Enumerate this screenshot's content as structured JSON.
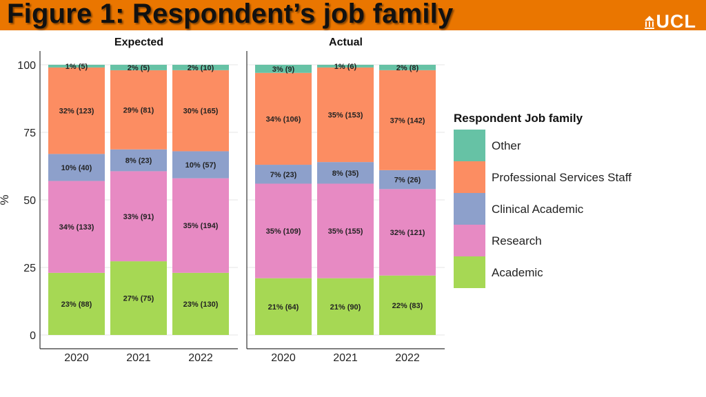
{
  "slide": {
    "title": "Figure 1: Respondent’s job family",
    "logo_text": "UCL",
    "logo_icon": "ucl-portico-icon",
    "header_color": "#ea7600"
  },
  "chart_data": {
    "type": "bar",
    "stacked": true,
    "facets": [
      "Expected",
      "Actual"
    ],
    "categories": [
      "2020",
      "2021",
      "2022"
    ],
    "ylabel": "%",
    "xlabel": "",
    "ylim": [
      0,
      100
    ],
    "yticks": [
      0,
      25,
      50,
      75,
      100
    ],
    "legend_title": "Respondent Job family",
    "legend_position": "right",
    "grid": true,
    "series": [
      {
        "name": "Academic",
        "color": "#a6d854",
        "facets": {
          "Expected": {
            "values": [
              23,
              27,
              23
            ],
            "counts": [
              88,
              75,
              130
            ],
            "labels": [
              "23% (88)",
              "27% (75)",
              "23% (130)"
            ]
          },
          "Actual": {
            "values": [
              21,
              21,
              22
            ],
            "counts": [
              64,
              90,
              83
            ],
            "labels": [
              "21% (64)",
              "21% (90)",
              "22% (83)"
            ]
          }
        }
      },
      {
        "name": "Research",
        "color": "#e78ac3",
        "facets": {
          "Expected": {
            "values": [
              34,
              33,
              35
            ],
            "counts": [
              133,
              91,
              194
            ],
            "labels": [
              "34% (133)",
              "33% (91)",
              "35% (194)"
            ]
          },
          "Actual": {
            "values": [
              35,
              35,
              32
            ],
            "counts": [
              109,
              155,
              121
            ],
            "labels": [
              "35% (109)",
              "35% (155)",
              "32% (121)"
            ]
          }
        }
      },
      {
        "name": "Clinical Academic",
        "color": "#8da0cb",
        "facets": {
          "Expected": {
            "values": [
              10,
              8,
              10
            ],
            "counts": [
              40,
              23,
              57
            ],
            "labels": [
              "10% (40)",
              "8% (23)",
              "10% (57)"
            ]
          },
          "Actual": {
            "values": [
              7,
              8,
              7
            ],
            "counts": [
              23,
              35,
              26
            ],
            "labels": [
              "7% (23)",
              "8% (35)",
              "7% (26)"
            ]
          }
        }
      },
      {
        "name": "Professional Services Staff",
        "color": "#fc8d62",
        "facets": {
          "Expected": {
            "values": [
              32,
              29,
              30
            ],
            "counts": [
              123,
              81,
              165
            ],
            "labels": [
              "32% (123)",
              "29% (81)",
              "30% (165)"
            ]
          },
          "Actual": {
            "values": [
              34,
              35,
              37
            ],
            "counts": [
              106,
              153,
              142
            ],
            "labels": [
              "34% (106)",
              "35% (153)",
              "37% (142)"
            ]
          }
        }
      },
      {
        "name": "Other",
        "color": "#66c2a5",
        "facets": {
          "Expected": {
            "values": [
              1,
              2,
              2
            ],
            "counts": [
              5,
              5,
              10
            ],
            "labels": [
              "1% (5)",
              "2% (5)",
              "2% (10)"
            ]
          },
          "Actual": {
            "values": [
              3,
              1,
              2
            ],
            "counts": [
              9,
              6,
              8
            ],
            "labels": [
              "3% (9)",
              "1% (6)",
              "2% (8)"
            ]
          }
        }
      }
    ]
  }
}
